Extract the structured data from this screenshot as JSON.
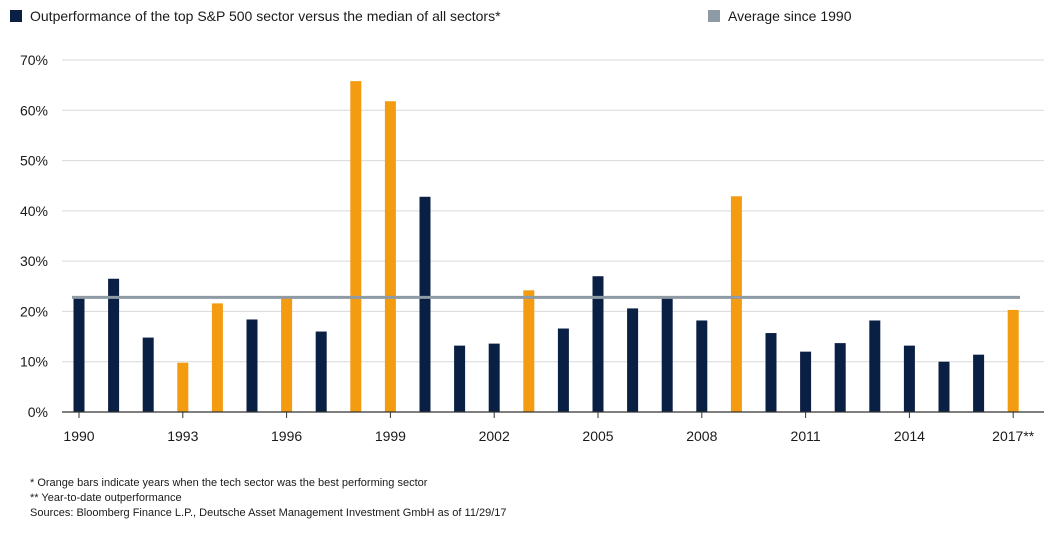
{
  "chart_data": {
    "type": "bar",
    "legend": {
      "primary_label": "Outperformance of the top S&P 500 sector versus the median of all sectors*",
      "average_label": "Average since 1990"
    },
    "colors": {
      "tech": "#F39C12",
      "other": "#0A1F44",
      "average": "#8E9AA4",
      "grid": "#D9D9D9",
      "axis": "#333333"
    },
    "ylim": [
      0,
      70
    ],
    "yticks": [
      0,
      10,
      20,
      30,
      40,
      50,
      60,
      70
    ],
    "ytick_labels": [
      "0%",
      "10%",
      "20%",
      "30%",
      "40%",
      "50%",
      "60%",
      "70%"
    ],
    "categories": [
      "1990",
      "1991",
      "1992",
      "1993",
      "1994",
      "1995",
      "1996",
      "1997",
      "1998",
      "1999",
      "2000",
      "2001",
      "2002",
      "2003",
      "2004",
      "2005",
      "2006",
      "2007",
      "2008",
      "2009",
      "2010",
      "2011",
      "2012",
      "2013",
      "2014",
      "2015",
      "2016",
      "2017"
    ],
    "values": [
      22.8,
      26.5,
      14.8,
      9.8,
      21.6,
      18.4,
      22.6,
      16.0,
      65.8,
      61.8,
      42.8,
      13.2,
      13.6,
      24.2,
      16.6,
      27.0,
      20.6,
      22.6,
      18.2,
      42.9,
      15.7,
      12.0,
      13.7,
      18.2,
      13.2,
      10.0,
      11.4,
      20.3
    ],
    "tech_sector_best": [
      false,
      false,
      false,
      true,
      true,
      false,
      true,
      false,
      true,
      true,
      false,
      false,
      false,
      true,
      false,
      false,
      false,
      false,
      false,
      true,
      false,
      false,
      false,
      false,
      false,
      false,
      false,
      true
    ],
    "x_tick_labels": [
      "1990",
      "1993",
      "1996",
      "1999",
      "2002",
      "2005",
      "2008",
      "2011",
      "2014",
      "2017**"
    ],
    "x_tick_years": [
      "1990",
      "1993",
      "1996",
      "1999",
      "2002",
      "2005",
      "2008",
      "2011",
      "2014",
      "2017"
    ],
    "average_value": 22.8
  },
  "footnotes": {
    "note1": "* Orange bars indicate years when the tech sector was the best performing sector",
    "note2": "** Year-to-date outperformance",
    "sources": "Sources: Bloomberg Finance L.P., Deutsche Asset Management Investment GmbH as of 11/29/17"
  }
}
